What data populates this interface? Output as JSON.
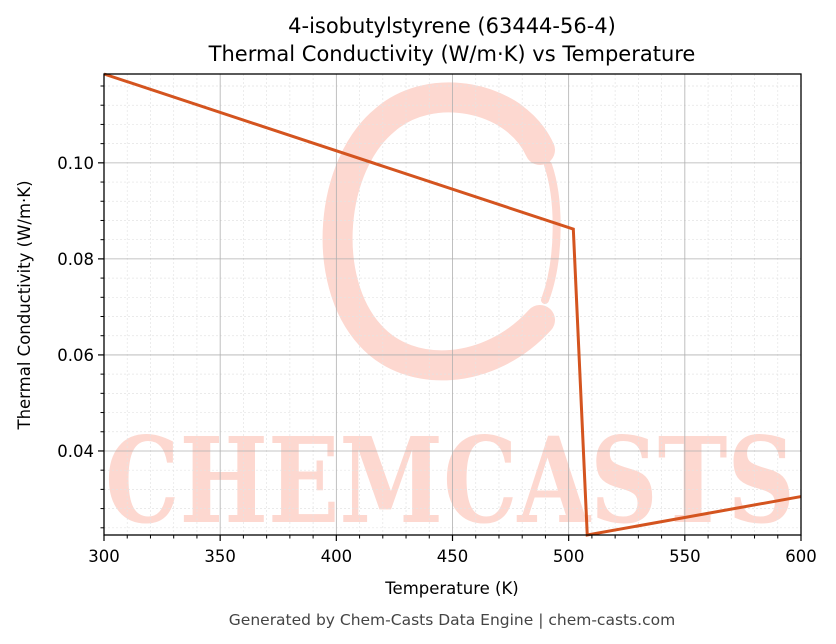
{
  "chart_data": {
    "type": "line",
    "title_line1": "4-isobutylstyrene (63444-56-4)",
    "title_line2": "Thermal Conductivity (W/m·K) vs Temperature",
    "xlabel": "Temperature (K)",
    "ylabel": "Thermal Conductivity (W/m·K)",
    "xlim": [
      300,
      600
    ],
    "ylim": [
      0.0225,
      0.1185
    ],
    "x_ticks": [
      "300",
      "350",
      "400",
      "450",
      "500",
      "550",
      "600"
    ],
    "y_ticks": [
      "0.04",
      "0.06",
      "0.08",
      "0.10"
    ],
    "grid": true,
    "series": [
      {
        "color": "#d4541f",
        "x": [
          300,
          502,
          508,
          600
        ],
        "y": [
          0.1185,
          0.0862,
          0.0225,
          0.0305
        ]
      }
    ]
  },
  "watermark": {
    "text": "CHEMCASTS",
    "color": "#fdd8d0"
  },
  "footer": "Generated by Chem-Casts Data Engine | chem-casts.com"
}
